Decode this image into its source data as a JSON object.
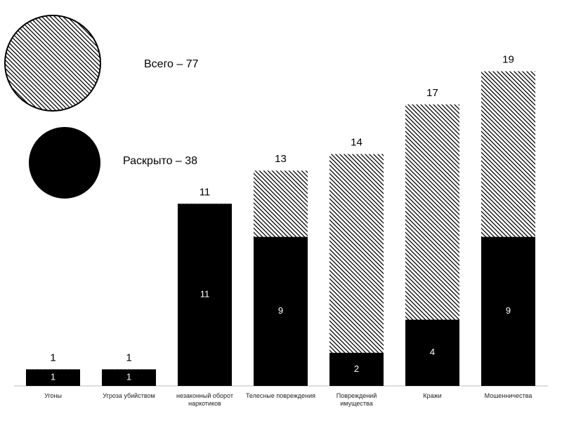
{
  "chart_data": {
    "type": "overlap-bar",
    "categories": [
      "Угоны",
      "Угроза убийством",
      "незаконный оборот наркотиков",
      "Телесные повреждения",
      "Повреждений имущества",
      "Кражи",
      "Мошенничества"
    ],
    "series": [
      {
        "name": "Всего – 77",
        "color": "#000000",
        "fill": "hatch",
        "values": [
          1,
          1,
          11,
          13,
          14,
          17,
          19
        ]
      },
      {
        "name": "Раскрыто – 38",
        "color": "#000000",
        "fill": "solid",
        "values": [
          1,
          1,
          11,
          9,
          2,
          4,
          9
        ]
      }
    ]
  }
}
